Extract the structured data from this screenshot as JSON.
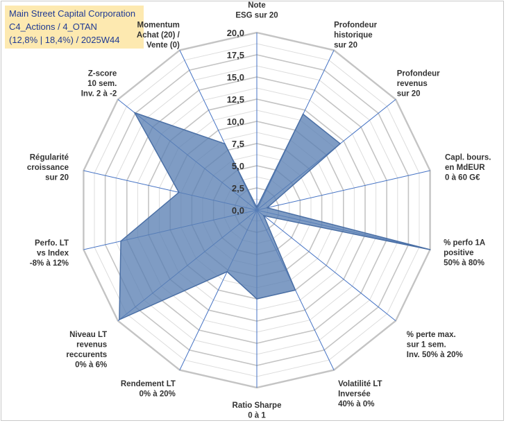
{
  "header": {
    "line1": "Main Street Capital Corporation",
    "line2": "C4_Actions / 4_OTAN",
    "line3": "(12,8% | 18,4%) / 2025W44"
  },
  "chart_data": {
    "type": "radar",
    "title": "Main Street Capital Corporation",
    "rmin": 0,
    "rmax": 20,
    "ticks": [
      "0,0",
      "2,5",
      "5,0",
      "7,5",
      "10,0",
      "12,5",
      "15,0",
      "17,5",
      "20,0"
    ],
    "tick_values": [
      0,
      2.5,
      5,
      7.5,
      10,
      12.5,
      15,
      17.5,
      20
    ],
    "axes": [
      [
        "Note",
        "ESG sur 20"
      ],
      [
        "Profondeur",
        "historique",
        "sur 20"
      ],
      [
        "Profondeur",
        "revenus",
        "sur 20"
      ],
      [
        "Capl. bours.",
        "en MdEUR",
        "0 à 60 G€"
      ],
      [
        "% perfo 1A",
        "positive",
        "50% à 80%"
      ],
      [
        "% perte max.",
        "sur 1 sem.",
        "Inv. 50% à 20%"
      ],
      [
        "Volatilité LT",
        "Inversée",
        "40% à 0%"
      ],
      [
        "Ratio Sharpe",
        "0 à 1"
      ],
      [
        "Rendement LT",
        "0% à 20%"
      ],
      [
        "Niveau LT",
        "revenus",
        "reccurents",
        "0% à 6%"
      ],
      [
        "Perfo. LT",
        "vs Index",
        "-8% à 12%"
      ],
      [
        "Régularité",
        "croissance",
        "sur 20"
      ],
      [
        "Z-score",
        "10 sem.",
        "Inv. 2 à -2"
      ],
      [
        "Momentum",
        "Achat (20) /",
        "Vente (0)"
      ]
    ],
    "series": [
      {
        "name": "Main Street Capital Corporation",
        "color": "#5b80b4",
        "values": [
          0.3,
          12.0,
          12.0,
          1.2,
          20.0,
          1.0,
          10.0,
          10.0,
          7.7,
          19.8,
          15.7,
          9.0,
          17.6,
          8.3
        ]
      }
    ]
  }
}
